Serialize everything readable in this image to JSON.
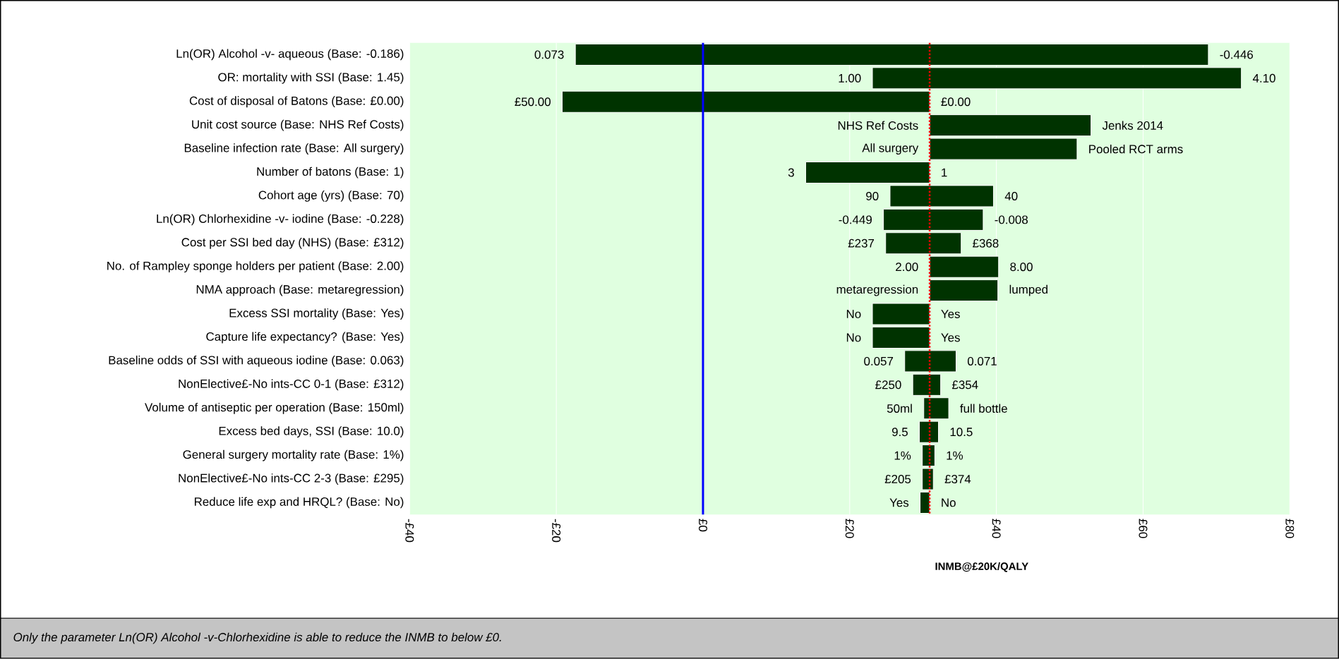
{
  "chart_data": {
    "type": "bar",
    "orientation": "horizontal",
    "categories": [
      "Ln(OR) Alcohol -v- aqueous (Base: -0.186)",
      "OR: mortality with SSI (Base: 1.45)",
      "Cost of disposal of Batons (Base: £0.00)",
      "Unit cost source (Base: NHS Ref Costs)",
      "Baseline infection rate (Base: All surgery)",
      "Number of batons (Base: 1)",
      "Cohort age (yrs) (Base: 70)",
      "Ln(OR) Chlorhexidine -v- iodine (Base: -0.228)",
      "Cost per SSI bed day (NHS) (Base: £312)",
      "No. of Rampley sponge holders per patient (Base: 2.00)",
      "NMA approach (Base: metaregression)",
      "Excess SSI mortality (Base: Yes)",
      "Capture life expectancy? (Base: Yes)",
      "Baseline odds of SSI with aqueous iodine (Base: 0.063)",
      "NonElective£-No ints-CC 0-1 (Base: £312)",
      "Volume of antiseptic per operation (Base: 150ml)",
      "Excess bed days, SSI (Base: 10.0)",
      "General surgery mortality rate (Base: 1%)",
      "NonElective£-No ints-CC 2-3 (Base: £295)",
      "Reduce life exp and HRQL? (Base: No)"
    ],
    "color": "#003300",
    "base": [
      -17.4,
      23.1,
      -19.2,
      30.9,
      30.9,
      14.0,
      25.5,
      24.6,
      24.9,
      30.9,
      30.9,
      23.1,
      23.1,
      27.5,
      28.6,
      30.1,
      29.5,
      29.9,
      29.9,
      29.6
    ],
    "values": [
      86.3,
      50.3,
      50.1,
      22.0,
      20.1,
      16.9,
      14.1,
      13.6,
      10.3,
      9.4,
      9.3,
      7.8,
      7.8,
      7.0,
      3.8,
      3.4,
      2.6,
      1.7,
      1.5,
      1.3
    ],
    "xlim": [
      -40,
      80
    ],
    "xticks": [
      {
        "value": -40,
        "label": "-£40"
      },
      {
        "value": -20,
        "label": "-£20"
      },
      {
        "value": 0,
        "label": "£0"
      },
      {
        "value": 20,
        "label": "£20"
      },
      {
        "value": 40,
        "label": "£40"
      },
      {
        "value": 60,
        "label": "£60"
      },
      {
        "value": 80,
        "label": "£80"
      }
    ],
    "xlabel": "INMB@£20K/QALY",
    "grid": "x",
    "ref_lines": [
      {
        "axis": "x",
        "value": 0,
        "color": "#0000ff",
        "line_style": "solid"
      },
      {
        "axis": "x",
        "value": 30.9,
        "color": "#ff0000",
        "line_style": "dotted"
      }
    ],
    "annotations": [
      {
        "text": "0.073",
        "x": -17.4,
        "y": "Ln(OR) Alcohol -v- aqueous (Base: -0.186)"
      },
      {
        "text": "-0.446",
        "x": 68.9,
        "y": "Ln(OR) Alcohol -v- aqueous (Base: -0.186)"
      },
      {
        "text": "1.00",
        "x": 23.1,
        "y": "OR: mortality with SSI (Base: 1.45)"
      },
      {
        "text": "4.10",
        "x": 73.4,
        "y": "OR: mortality with SSI (Base: 1.45)"
      },
      {
        "text": "£50.00",
        "x": -19.2,
        "y": "Cost of disposal of Batons (Base: £0.00)"
      },
      {
        "text": "£0.00",
        "x": 30.9,
        "y": "Cost of disposal of Batons (Base: £0.00)"
      },
      {
        "text": "NHS Ref Costs",
        "x": 30.9,
        "y": "Unit cost source (Base: NHS Ref Costs)"
      },
      {
        "text": "Jenks 2014",
        "x": 52.9,
        "y": "Unit cost source (Base: NHS Ref Costs)"
      },
      {
        "text": "All surgery",
        "x": 30.9,
        "y": "Baseline infection rate (Base: All surgery)"
      },
      {
        "text": "Pooled RCT arms",
        "x": 51.0,
        "y": "Baseline infection rate (Base: All surgery)"
      },
      {
        "text": "3",
        "x": 14.0,
        "y": "Number of batons (Base: 1)"
      },
      {
        "text": "1",
        "x": 30.9,
        "y": "Number of batons (Base: 1)"
      },
      {
        "text": "90",
        "x": 25.5,
        "y": "Cohort age (yrs) (Base: 70)"
      },
      {
        "text": "40",
        "x": 39.6,
        "y": "Cohort age (yrs) (Base: 70)"
      },
      {
        "text": "-0.449",
        "x": 24.6,
        "y": "Ln(OR) Chlorhexidine -v- iodine (Base: -0.228)"
      },
      {
        "text": "-0.008",
        "x": 38.2,
        "y": "Ln(OR) Chlorhexidine -v- iodine (Base: -0.228)"
      },
      {
        "text": "£237",
        "x": 24.9,
        "y": "Cost per SSI bed day (NHS) (Base: £312)"
      },
      {
        "text": "£368",
        "x": 35.2,
        "y": "Cost per SSI bed day (NHS) (Base: £312)"
      },
      {
        "text": "2.00",
        "x": 30.9,
        "y": "No. of Rampley sponge holders per patient (Base: 2.00)"
      },
      {
        "text": "8.00",
        "x": 40.3,
        "y": "No. of Rampley sponge holders per patient (Base: 2.00)"
      },
      {
        "text": "metaregression",
        "x": 30.9,
        "y": "NMA approach (Base: metaregression)"
      },
      {
        "text": "lumped",
        "x": 40.2,
        "y": "NMA approach (Base: metaregression)"
      },
      {
        "text": "No",
        "x": 23.1,
        "y": "Excess SSI mortality (Base: Yes)"
      },
      {
        "text": "Yes",
        "x": 30.9,
        "y": "Excess SSI mortality (Base: Yes)"
      },
      {
        "text": "No",
        "x": 23.1,
        "y": "Capture life expectancy? (Base: Yes)"
      },
      {
        "text": "Yes",
        "x": 30.9,
        "y": "Capture life expectancy? (Base: Yes)"
      },
      {
        "text": "0.057",
        "x": 27.5,
        "y": "Baseline odds of SSI with aqueous iodine (Base: 0.063)"
      },
      {
        "text": "0.071",
        "x": 34.5,
        "y": "Baseline odds of SSI with aqueous iodine (Base: 0.063)"
      },
      {
        "text": "£250",
        "x": 28.6,
        "y": "NonElective£-No ints-CC 0-1 (Base: £312)"
      },
      {
        "text": "£354",
        "x": 32.4,
        "y": "NonElective£-No ints-CC 0-1 (Base: £312)"
      },
      {
        "text": "50ml",
        "x": 30.1,
        "y": "Volume of antiseptic per operation (Base: 150ml)"
      },
      {
        "text": "full bottle",
        "x": 33.5,
        "y": "Volume of antiseptic per operation (Base: 150ml)"
      },
      {
        "text": "9.5",
        "x": 29.5,
        "y": "Excess bed days, SSI (Base: 10.0)"
      },
      {
        "text": "10.5",
        "x": 32.1,
        "y": "Excess bed days, SSI (Base: 10.0)"
      },
      {
        "text": "1%",
        "x": 29.9,
        "y": "General surgery mortality rate (Base: 1%)"
      },
      {
        "text": "1%",
        "x": 31.6,
        "y": "General surgery mortality rate (Base: 1%)"
      },
      {
        "text": "£205",
        "x": 29.9,
        "y": "NonElective£-No ints-CC 2-3 (Base: £295)"
      },
      {
        "text": "£374",
        "x": 31.4,
        "y": "NonElective£-No ints-CC 2-3 (Base: £295)"
      },
      {
        "text": "Yes",
        "x": 29.6,
        "y": "Reduce life exp and HRQL? (Base: No)"
      },
      {
        "text": "No",
        "x": 30.9,
        "y": "Reduce life exp and HRQL? (Base: No)"
      },
      "Only the parameter Ln(OR) Alcohol -v-Chlorhexidine is able to reduce the INMB to below £0."
    ]
  }
}
